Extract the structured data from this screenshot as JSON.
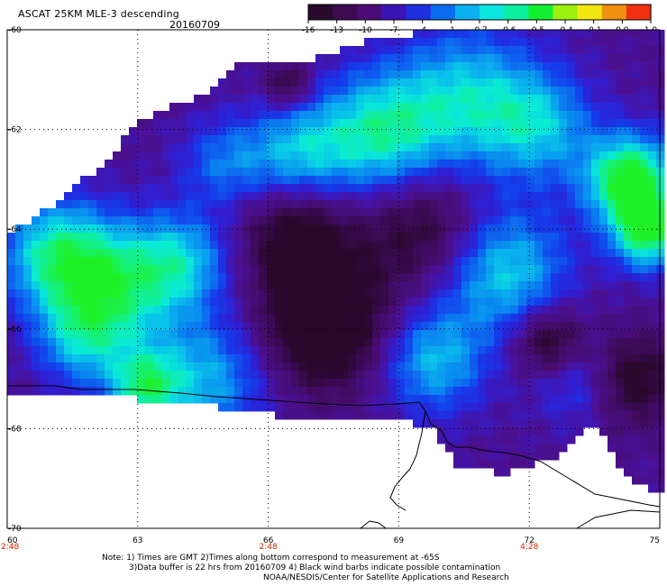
{
  "header": {
    "title": "ASCAT 25KM MLE-3 descending",
    "date": "20160709"
  },
  "colorbar": {
    "labels": [
      "-16",
      "-13",
      "-10",
      "-7",
      "-4",
      "-1",
      "-0.7",
      "-0.6",
      "-0.5",
      "-0.4",
      "-0.1",
      "0.0",
      "1.0"
    ],
    "colors": [
      "#2a0a2c",
      "#3d0a52",
      "#4b0c78",
      "#3b14b8",
      "#1e30e0",
      "#0a6cf0",
      "#0ab0f0",
      "#0ae6e0",
      "#0af0a0",
      "#10f030",
      "#9cf010",
      "#f0e810",
      "#f09010",
      "#f03010"
    ]
  },
  "map": {
    "lat_labels": [
      "-60",
      "-62",
      "-64",
      "-66",
      "-68",
      "-70"
    ],
    "lon_labels": [
      "60",
      "63",
      "66",
      "69",
      "72",
      "75"
    ],
    "time_labels": [
      "2:48",
      "2:48",
      "4:28"
    ],
    "time_color": "#cc2200",
    "frame_color": "#000000"
  },
  "notes": {
    "line1": "Note: 1) Times are GMT 2)Times along bottom correspond to measurement at -65S",
    "line2": "3)Data buffer is 22 hrs from 20160709 4) Black wind barbs indicate possible contamination",
    "line3": "NOAA/NESDIS/Center for Satellite Applications and Research"
  }
}
